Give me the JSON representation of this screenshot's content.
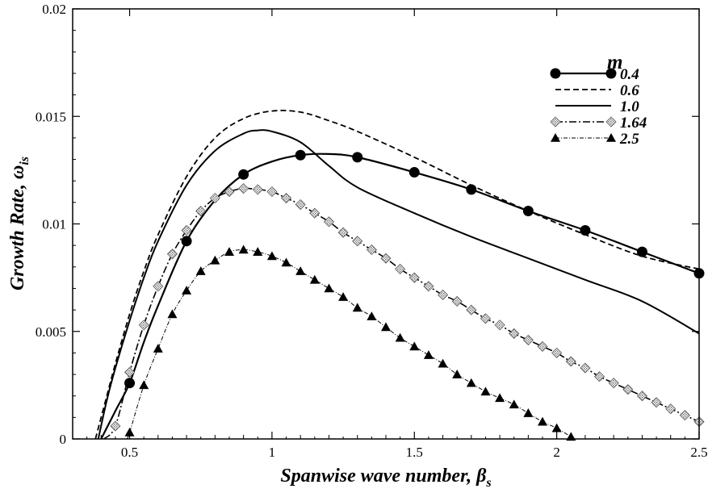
{
  "chart_data": {
    "type": "line",
    "xlabel": "Spanwise wave number, β",
    "xlabel_subscript": "s",
    "ylabel": "Growth Rate, ω",
    "ylabel_subscript": "is",
    "xlim": [
      0.3,
      2.5
    ],
    "ylim": [
      0,
      0.02
    ],
    "x_ticks": [
      0.5,
      1,
      1.5,
      2,
      2.5
    ],
    "x_tick_labels": [
      "0.5",
      "1",
      "1.5",
      "2",
      "2.5"
    ],
    "y_ticks": [
      0,
      0.005,
      0.01,
      0.015,
      0.02
    ],
    "y_tick_labels": [
      "0",
      "0.005",
      "0.01",
      "0.015",
      "0.02"
    ],
    "grid": false,
    "legend_title": "m",
    "legend_position": "top-right",
    "series": [
      {
        "name": "0.4",
        "style": "solid-thick",
        "marker": "filled-circle",
        "color": "#000000",
        "x": [
          0.4,
          0.45,
          0.5,
          0.55,
          0.6,
          0.7,
          0.8,
          0.9,
          1.0,
          1.1,
          1.2,
          1.3,
          1.5,
          1.7,
          1.9,
          2.1,
          2.3,
          2.5
        ],
        "y": [
          0,
          0.0013,
          0.0026,
          0.0045,
          0.0062,
          0.0092,
          0.0111,
          0.0123,
          0.0129,
          0.0132,
          0.01325,
          0.0131,
          0.0124,
          0.0116,
          0.0106,
          0.0097,
          0.0087,
          0.0077
        ],
        "marker_x": [
          0.5,
          0.7,
          0.9,
          1.1,
          1.3,
          1.5,
          1.7,
          1.9,
          2.1,
          2.3,
          2.5
        ]
      },
      {
        "name": "0.6",
        "style": "dashed",
        "marker": "none",
        "color": "#000000",
        "x": [
          0.38,
          0.42,
          0.45,
          0.5,
          0.55,
          0.6,
          0.7,
          0.8,
          0.9,
          1.0,
          1.1,
          1.2,
          1.3,
          1.5,
          1.7,
          1.9,
          2.1,
          2.3,
          2.5
        ],
        "y": [
          0,
          0.002,
          0.0035,
          0.0058,
          0.0078,
          0.0095,
          0.0122,
          0.014,
          0.0149,
          0.01525,
          0.0152,
          0.0148,
          0.0143,
          0.0131,
          0.0118,
          0.0106,
          0.0095,
          0.0085,
          0.0079
        ]
      },
      {
        "name": "1.0",
        "style": "solid",
        "marker": "none",
        "color": "#000000",
        "x": [
          0.39,
          0.42,
          0.45,
          0.5,
          0.55,
          0.6,
          0.7,
          0.8,
          0.9,
          0.95,
          1.0,
          1.1,
          1.2,
          1.3,
          1.5,
          1.7,
          1.9,
          2.1,
          2.3,
          2.5
        ],
        "y": [
          0,
          0.0018,
          0.0033,
          0.0055,
          0.0075,
          0.0092,
          0.0118,
          0.0134,
          0.0142,
          0.01435,
          0.0143,
          0.0138,
          0.0127,
          0.0117,
          0.0105,
          0.0094,
          0.0084,
          0.0074,
          0.0064,
          0.0049
        ]
      },
      {
        "name": "1.64",
        "style": "dash-dot",
        "marker": "hatched-diamond",
        "color": "#000000",
        "x": [
          0.41,
          0.45,
          0.5,
          0.55,
          0.6,
          0.65,
          0.7,
          0.75,
          0.8,
          0.85,
          0.9,
          0.95,
          1.0,
          1.05,
          1.1,
          1.15,
          1.2,
          1.25,
          1.3,
          1.35,
          1.4,
          1.45,
          1.5,
          1.55,
          1.6,
          1.65,
          1.7,
          1.75,
          1.8,
          1.85,
          1.9,
          1.95,
          2.0,
          2.05,
          2.1,
          2.15,
          2.2,
          2.25,
          2.3,
          2.35,
          2.4,
          2.45,
          2.5
        ],
        "y": [
          0,
          0.0006,
          0.0031,
          0.0053,
          0.0071,
          0.0086,
          0.0097,
          0.0106,
          0.0112,
          0.0115,
          0.01165,
          0.0116,
          0.0115,
          0.0112,
          0.0109,
          0.0105,
          0.0101,
          0.0096,
          0.0092,
          0.0088,
          0.0084,
          0.0079,
          0.0075,
          0.0071,
          0.0067,
          0.0064,
          0.006,
          0.0056,
          0.0053,
          0.0049,
          0.0046,
          0.0043,
          0.004,
          0.0036,
          0.0033,
          0.0029,
          0.0026,
          0.0023,
          0.002,
          0.0017,
          0.0014,
          0.0011,
          0.0008
        ],
        "marker_x": [
          0.45,
          0.5,
          0.55,
          0.6,
          0.65,
          0.7,
          0.75,
          0.8,
          0.85,
          0.9,
          0.95,
          1.0,
          1.05,
          1.1,
          1.15,
          1.2,
          1.25,
          1.3,
          1.35,
          1.4,
          1.45,
          1.5,
          1.55,
          1.6,
          1.65,
          1.7,
          1.75,
          1.8,
          1.85,
          1.9,
          1.95,
          2.0,
          2.05,
          2.1,
          2.15,
          2.2,
          2.25,
          2.3,
          2.35,
          2.4,
          2.45,
          2.5
        ]
      },
      {
        "name": "2.5",
        "style": "dash-dot-thin",
        "marker": "filled-triangle",
        "color": "#000000",
        "x": [
          0.49,
          0.5,
          0.55,
          0.6,
          0.65,
          0.7,
          0.75,
          0.8,
          0.85,
          0.9,
          0.95,
          1.0,
          1.05,
          1.1,
          1.15,
          1.2,
          1.25,
          1.3,
          1.35,
          1.4,
          1.45,
          1.5,
          1.55,
          1.6,
          1.65,
          1.7,
          1.75,
          1.8,
          1.85,
          1.9,
          1.95,
          2.0,
          2.05,
          2.06
        ],
        "y": [
          0,
          0.0003,
          0.0025,
          0.0042,
          0.0058,
          0.0069,
          0.0078,
          0.0083,
          0.0087,
          0.0088,
          0.0087,
          0.0085,
          0.0082,
          0.0078,
          0.0074,
          0.007,
          0.0066,
          0.0061,
          0.0057,
          0.0052,
          0.0047,
          0.0043,
          0.0039,
          0.0035,
          0.003,
          0.0026,
          0.0022,
          0.0019,
          0.0016,
          0.0012,
          0.0008,
          0.0005,
          0.0001,
          0
        ],
        "marker_x": [
          0.5,
          0.55,
          0.6,
          0.65,
          0.7,
          0.75,
          0.8,
          0.85,
          0.9,
          0.95,
          1.0,
          1.05,
          1.1,
          1.15,
          1.2,
          1.25,
          1.3,
          1.35,
          1.4,
          1.45,
          1.5,
          1.55,
          1.6,
          1.65,
          1.7,
          1.75,
          1.8,
          1.85,
          1.9,
          1.95,
          2.0,
          2.05
        ]
      }
    ]
  }
}
